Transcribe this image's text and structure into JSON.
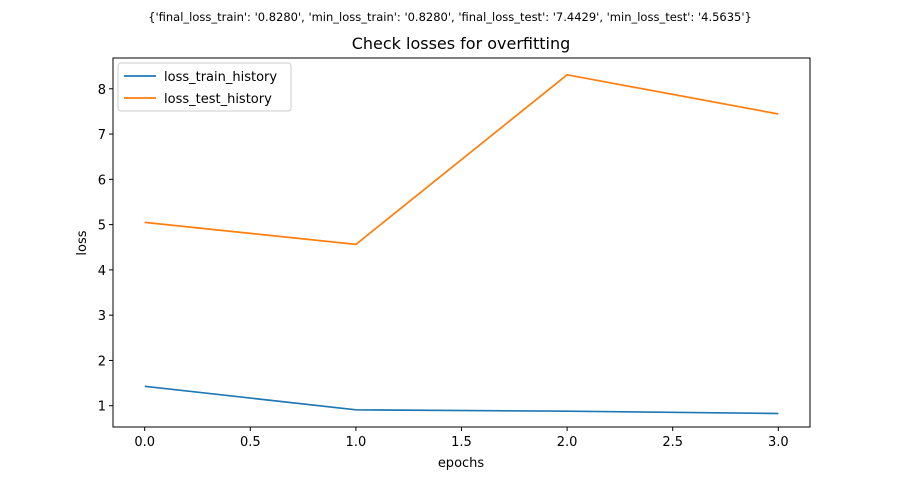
{
  "chart_data": {
    "type": "line",
    "suptitle": "{'final_loss_train': '0.8280', 'min_loss_train': '0.8280', 'final_loss_test': '7.4429', 'min_loss_test': '4.5635'}",
    "title": "Check losses for overfitting",
    "xlabel": "epochs",
    "ylabel": "loss",
    "xlim": [
      -0.15,
      3.15
    ],
    "ylim": [
      0.53,
      8.68
    ],
    "xticks": [
      0.0,
      0.5,
      1.0,
      1.5,
      2.0,
      2.5,
      3.0
    ],
    "xtick_labels": [
      "0.0",
      "0.5",
      "1.0",
      "1.5",
      "2.0",
      "2.5",
      "3.0"
    ],
    "yticks": [
      1,
      2,
      3,
      4,
      5,
      6,
      7,
      8
    ],
    "ytick_labels": [
      "1",
      "2",
      "3",
      "4",
      "5",
      "6",
      "7",
      "8"
    ],
    "grid": false,
    "legend_position": "upper-left",
    "x": [
      0,
      1,
      2,
      3
    ],
    "series": [
      {
        "name": "loss_train_history",
        "color": "#1f77b4",
        "values": [
          1.43,
          0.91,
          0.88,
          0.828
        ]
      },
      {
        "name": "loss_test_history",
        "color": "#ff7f0e",
        "values": [
          5.05,
          4.5635,
          8.31,
          7.4429
        ]
      }
    ]
  }
}
